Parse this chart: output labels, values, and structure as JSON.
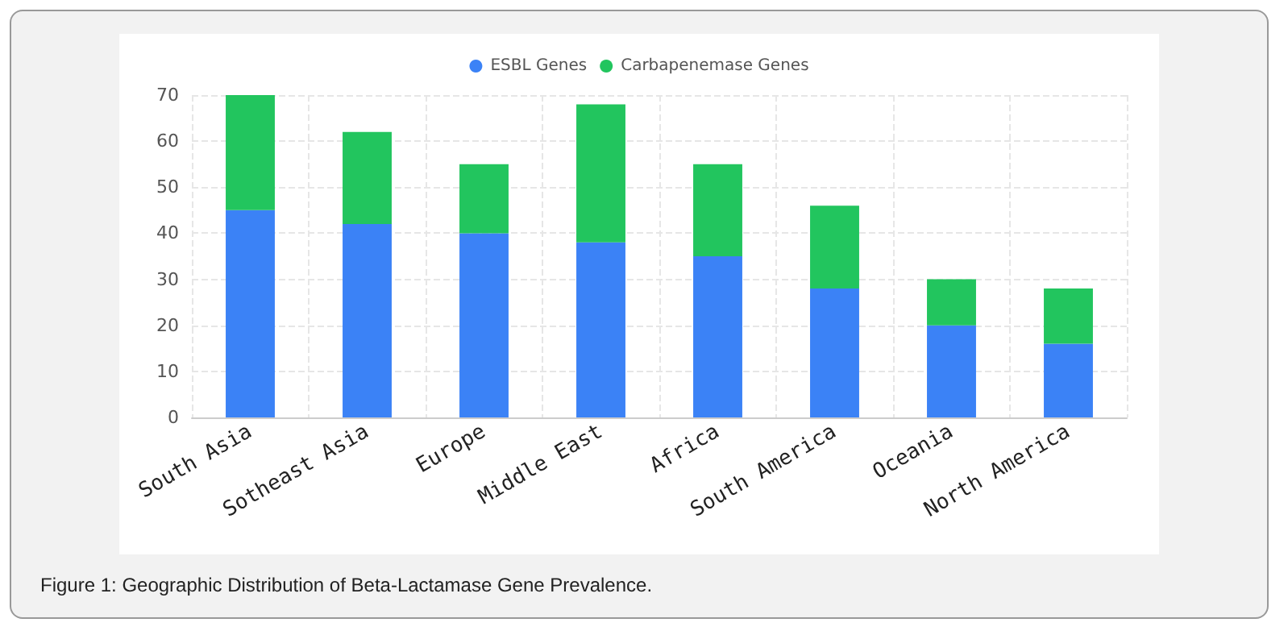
{
  "chart_data": {
    "type": "bar",
    "stacked": true,
    "categories": [
      "South Asia",
      "Sotheast Asia",
      "Europe",
      "Middle East",
      "Africa",
      "South America",
      "Oceania",
      "North America"
    ],
    "series": [
      {
        "name": "ESBL Genes",
        "color": "#3b82f6",
        "values": [
          45,
          42,
          40,
          38,
          35,
          28,
          20,
          16
        ]
      },
      {
        "name": "Carbapenemase Genes",
        "color": "#22c55e",
        "values": [
          25,
          20,
          15,
          30,
          20,
          18,
          10,
          12
        ]
      }
    ],
    "ylim": [
      0,
      70
    ],
    "yticks": [
      0,
      10,
      20,
      30,
      40,
      50,
      60,
      70
    ],
    "grid": true,
    "legend": "top",
    "annotations": [
      "Figure 1: Geographic Distribution of Beta-Lactamase Gene Prevalence."
    ]
  }
}
